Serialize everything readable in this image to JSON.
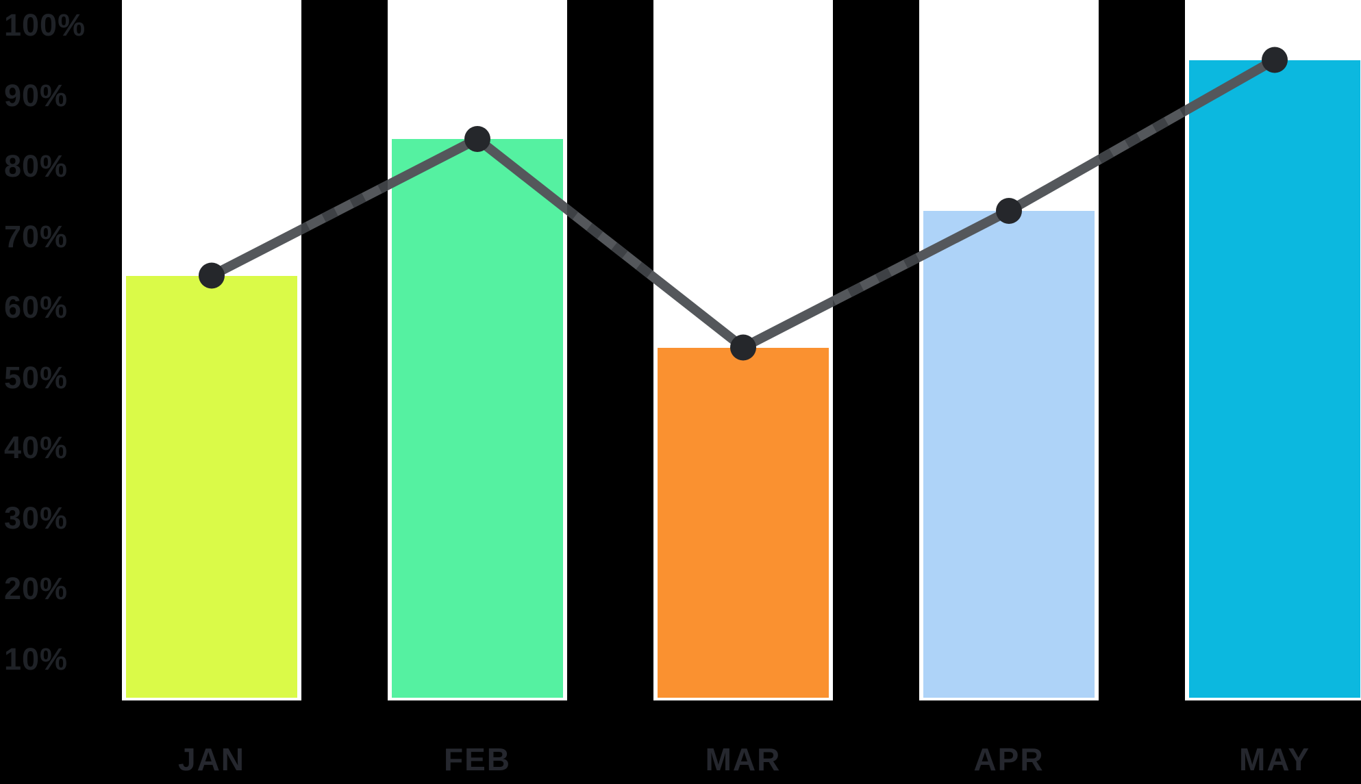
{
  "chart_data": {
    "type": "bar",
    "title": "",
    "xlabel": "",
    "ylabel": "",
    "unit": "%",
    "categories": [
      "JAN",
      "FEB",
      "MAR",
      "APR",
      "MAY"
    ],
    "series": [
      {
        "name": "monthly-percentage-bars",
        "type": "bar",
        "values": [
          65,
          84,
          55,
          74,
          95
        ],
        "bar_colors": [
          "#DAFA48",
          "#55F1A1",
          "#FA9130",
          "#AED3F8",
          "#0CB8DF"
        ]
      },
      {
        "name": "trend-line",
        "type": "line",
        "values": [
          65,
          84,
          55,
          74,
          95
        ],
        "line_color": "#54575B",
        "dash_overlay_color": "#3E4145",
        "marker_color": "#25272B"
      }
    ],
    "y_ticks": [
      "100%",
      "90%",
      "80%",
      "70%",
      "60%",
      "50%",
      "40%",
      "30%",
      "20%",
      "10%"
    ],
    "ylim": [
      0,
      100
    ],
    "grid": false,
    "legend": false,
    "background_color": "#000000",
    "column_track_color": "#FFFFFF",
    "y_tick_color": "#1F2227",
    "x_label_color": "#25272E"
  }
}
